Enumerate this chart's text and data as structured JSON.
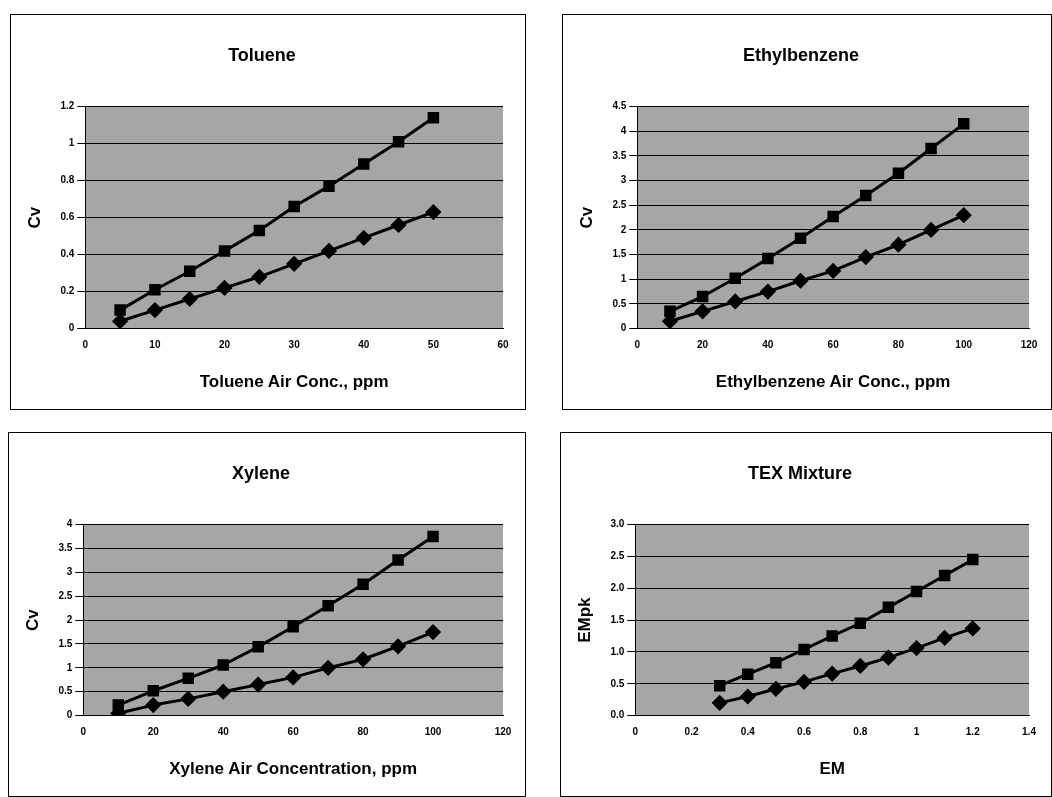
{
  "chart_data": [
    {
      "type": "line",
      "title": "Toluene",
      "xlabel": "Toluene Air Conc., ppm",
      "ylabel": "Cv",
      "x": [
        5,
        10,
        15,
        20,
        25,
        30,
        35,
        40,
        45,
        50
      ],
      "series": [
        {
          "color": "#000000",
          "marker": "square",
          "values": [
            0.1,
            0.21,
            0.31,
            0.42,
            0.53,
            0.66,
            0.77,
            0.89,
            1.01,
            1.14
          ]
        },
        {
          "color": "#000000",
          "marker": "diamond",
          "values": [
            0.04,
            0.1,
            0.16,
            0.22,
            0.28,
            0.35,
            0.42,
            0.49,
            0.56,
            0.63
          ]
        }
      ],
      "xlim": [
        0,
        60
      ],
      "xticks": [
        0,
        10,
        20,
        30,
        40,
        50,
        60
      ],
      "ylim": [
        0,
        1.2
      ],
      "yticks": [
        0,
        0.2,
        0.4,
        0.6,
        0.8,
        1,
        1.2
      ],
      "grid": "y",
      "legend": false
    },
    {
      "type": "line",
      "title": "Ethylbenzene",
      "xlabel": "Ethylbenzene Air Conc., ppm",
      "ylabel": "Cv",
      "x": [
        10,
        20,
        30,
        40,
        50,
        60,
        70,
        80,
        90,
        100
      ],
      "series": [
        {
          "color": "#000000",
          "marker": "square",
          "values": [
            0.35,
            0.65,
            1.02,
            1.42,
            1.83,
            2.27,
            2.7,
            3.15,
            3.65,
            4.15
          ]
        },
        {
          "color": "#000000",
          "marker": "diamond",
          "values": [
            0.15,
            0.35,
            0.55,
            0.75,
            0.97,
            1.17,
            1.45,
            1.7,
            2.0,
            2.3
          ]
        }
      ],
      "xlim": [
        0,
        120
      ],
      "xticks": [
        0,
        20,
        40,
        60,
        80,
        100,
        120
      ],
      "ylim": [
        0,
        4.5
      ],
      "yticks": [
        0,
        0.5,
        1,
        1.5,
        2,
        2.5,
        3,
        3.5,
        4,
        4.5
      ],
      "grid": "y",
      "legend": false
    },
    {
      "type": "line",
      "title": "Xylene",
      "xlabel": "Xylene Air Concentration, ppm",
      "ylabel": "Cv",
      "x": [
        10,
        20,
        30,
        40,
        50,
        60,
        70,
        80,
        90,
        100
      ],
      "series": [
        {
          "color": "#000000",
          "marker": "square",
          "values": [
            0.22,
            0.52,
            0.78,
            1.06,
            1.44,
            1.86,
            2.3,
            2.75,
            3.26,
            3.75
          ]
        },
        {
          "color": "#000000",
          "marker": "diamond",
          "values": [
            0.05,
            0.22,
            0.35,
            0.5,
            0.65,
            0.8,
            1.0,
            1.18,
            1.45,
            1.75
          ]
        }
      ],
      "xlim": [
        0,
        120
      ],
      "xticks": [
        0,
        20,
        40,
        60,
        80,
        100,
        120
      ],
      "ylim": [
        0,
        4
      ],
      "yticks": [
        0,
        0.5,
        1,
        1.5,
        2,
        2.5,
        3,
        3.5,
        4
      ],
      "grid": "y",
      "legend": false
    },
    {
      "type": "line",
      "title": "TEX Mixture",
      "xlabel": "EM",
      "ylabel": "EMpk",
      "x": [
        0.3,
        0.4,
        0.5,
        0.6,
        0.7,
        0.8,
        0.9,
        1.0,
        1.1,
        1.2
      ],
      "series": [
        {
          "color": "#000000",
          "marker": "square",
          "values": [
            0.47,
            0.65,
            0.83,
            1.04,
            1.25,
            1.45,
            1.7,
            1.95,
            2.2,
            2.45
          ]
        },
        {
          "color": "#000000",
          "marker": "diamond",
          "values": [
            0.2,
            0.3,
            0.42,
            0.53,
            0.66,
            0.78,
            0.91,
            1.06,
            1.22,
            1.37
          ]
        }
      ],
      "xlim": [
        0,
        1.4
      ],
      "xticks": [
        0,
        0.2,
        0.4,
        0.6,
        0.8,
        1,
        1.2,
        1.4
      ],
      "ylim": [
        0,
        3
      ],
      "yticks": [
        {
          "value": 0,
          "label": "0.0"
        },
        {
          "value": 0.5,
          "label": "0.5"
        },
        {
          "value": 1,
          "label": "1.0"
        },
        {
          "value": 1.5,
          "label": "1.5"
        },
        {
          "value": 2,
          "label": "2.0"
        },
        {
          "value": 2.5,
          "label": "2.5"
        },
        {
          "value": 3,
          "label": "3.0"
        }
      ],
      "grid": "y",
      "legend": false
    }
  ]
}
